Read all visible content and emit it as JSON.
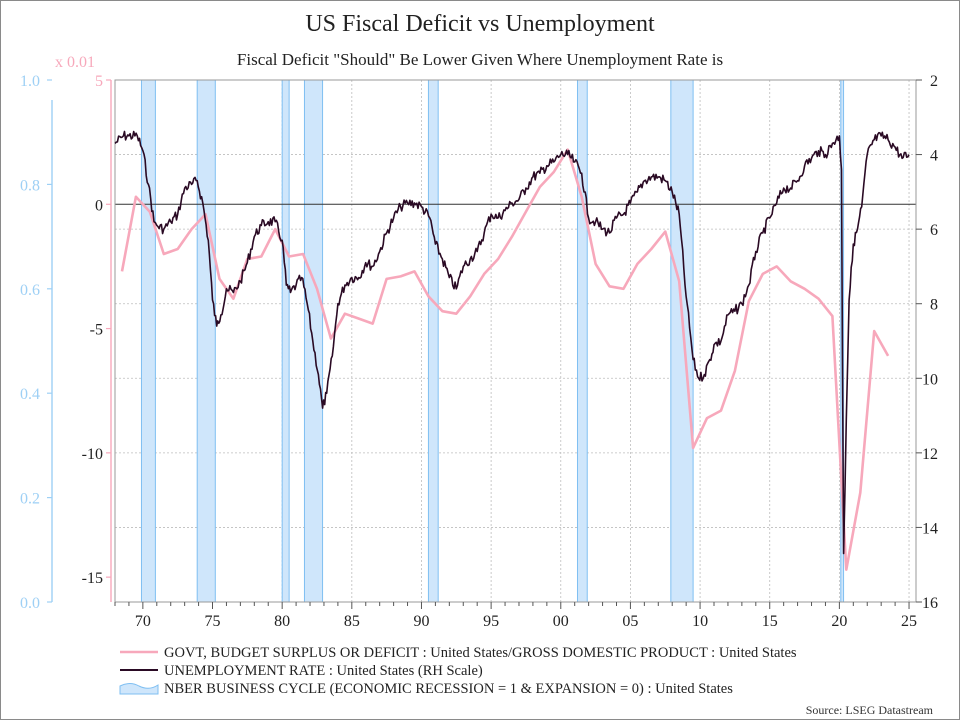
{
  "chart_data": {
    "type": "line",
    "title": "US Fiscal Deficit vs Unemployment",
    "subtitle": "Fiscal Deficit \"Should\" Be Lower Given Where Unemployment Rate is",
    "source": "Source: LSEG Datastream",
    "scale_note": "x 0.01",
    "colors": {
      "deficit": "#f7a8bb",
      "unemployment": "#2a0a24",
      "recession_fill": "#cfe6fb",
      "recession_edge": "#7fbff2",
      "left_axis": "#9ed0f5",
      "pink_axis": "#f7a8bb"
    },
    "x_range": [
      1968,
      2025.5
    ],
    "x_ticks": [
      {
        "v": 1970,
        "label": "70"
      },
      {
        "v": 1975,
        "label": "75"
      },
      {
        "v": 1980,
        "label": "80"
      },
      {
        "v": 1985,
        "label": "85"
      },
      {
        "v": 1990,
        "label": "90"
      },
      {
        "v": 1995,
        "label": "95"
      },
      {
        "v": 2000,
        "label": "00"
      },
      {
        "v": 2005,
        "label": "05"
      },
      {
        "v": 2010,
        "label": "10"
      },
      {
        "v": 2015,
        "label": "15"
      },
      {
        "v": 2020,
        "label": "20"
      },
      {
        "v": 2025,
        "label": "25"
      }
    ],
    "left_axis": {
      "range": [
        0.0,
        1.0
      ],
      "ticks": [
        "0.0",
        "0.2",
        "0.4",
        "0.6",
        "0.8",
        "1.0"
      ]
    },
    "deficit_axis": {
      "range": [
        -16,
        5
      ],
      "ticks": [
        {
          "v": 5,
          "label": "5"
        },
        {
          "v": 0,
          "label": "0"
        },
        {
          "v": -5,
          "label": "-5"
        },
        {
          "v": -10,
          "label": "-10"
        },
        {
          "v": -15,
          "label": "-15"
        }
      ]
    },
    "right_axis": {
      "range": [
        2,
        16
      ],
      "inverted": true,
      "ticks": [
        "2",
        "4",
        "6",
        "8",
        "10",
        "12",
        "14",
        "16"
      ]
    },
    "legend": [
      "GOVT, BUDGET SURPLUS OR DEFICIT : United States/GROSS DOMESTIC PRODUCT : United States",
      "UNEMPLOYMENT RATE : United States (RH Scale)",
      "NBER BUSINESS CYCLE (ECONOMIC RECESSION = 1 & EXPANSION = 0) : United States"
    ],
    "recessions": [
      [
        1969.9,
        1970.9
      ],
      [
        1973.9,
        1975.2
      ],
      [
        1980.0,
        1980.5
      ],
      [
        1981.6,
        1982.9
      ],
      [
        1990.5,
        1991.2
      ],
      [
        2001.2,
        2001.9
      ],
      [
        2007.9,
        2009.5
      ],
      [
        2020.1,
        2020.3
      ]
    ],
    "deficit": {
      "x": [
        1968.5,
        1969.5,
        1970.5,
        1971.5,
        1972.5,
        1973.5,
        1974.5,
        1975.5,
        1976.5,
        1977.5,
        1978.5,
        1979.5,
        1980.5,
        1981.5,
        1982.5,
        1983.5,
        1984.5,
        1985.5,
        1986.5,
        1987.5,
        1988.5,
        1989.5,
        1990.5,
        1991.5,
        1992.5,
        1993.5,
        1994.5,
        1995.5,
        1996.5,
        1997.5,
        1998.5,
        1999.5,
        2000.5,
        2001.5,
        2002.5,
        2003.5,
        2004.5,
        2005.5,
        2006.5,
        2007.5,
        2008.5,
        2009.5,
        2010.5,
        2011.5,
        2012.5,
        2013.5,
        2014.5,
        2015.5,
        2016.5,
        2017.5,
        2018.5,
        2019.5,
        2020.5,
        2021.5,
        2022.5,
        2023.5
      ],
      "y": [
        -2.7,
        0.3,
        -0.3,
        -2.0,
        -1.8,
        -1.0,
        -0.4,
        -3.0,
        -3.8,
        -2.2,
        -2.1,
        -1.0,
        -2.1,
        -2.0,
        -3.4,
        -5.4,
        -4.4,
        -4.6,
        -4.8,
        -3.0,
        -2.9,
        -2.7,
        -3.7,
        -4.3,
        -4.4,
        -3.7,
        -2.8,
        -2.2,
        -1.3,
        -0.3,
        0.7,
        1.3,
        2.2,
        0.3,
        -2.4,
        -3.3,
        -3.4,
        -2.4,
        -1.8,
        -1.1,
        -3.1,
        -9.8,
        -8.6,
        -8.3,
        -6.7,
        -3.9,
        -2.8,
        -2.5,
        -3.1,
        -3.4,
        -3.8,
        -4.5,
        -14.7,
        -11.6,
        -5.1,
        -6.1
      ]
    },
    "unemployment": {
      "x": [
        1968.0,
        1968.6,
        1969.0,
        1969.6,
        1970.0,
        1970.4,
        1970.8,
        1971.0,
        1971.5,
        1972.0,
        1972.5,
        1973.0,
        1973.5,
        1973.9,
        1974.3,
        1974.7,
        1975.0,
        1975.3,
        1975.6,
        1976.0,
        1976.5,
        1977.0,
        1977.5,
        1978.0,
        1978.5,
        1979.0,
        1979.5,
        1980.0,
        1980.3,
        1980.6,
        1981.0,
        1981.4,
        1981.8,
        1982.2,
        1982.6,
        1982.9,
        1983.2,
        1983.6,
        1984.0,
        1984.5,
        1985.0,
        1985.5,
        1986.0,
        1986.5,
        1987.0,
        1987.5,
        1988.0,
        1988.5,
        1989.0,
        1989.5,
        1990.0,
        1990.6,
        1991.0,
        1991.5,
        1992.0,
        1992.5,
        1993.0,
        1993.5,
        1994.0,
        1994.5,
        1995.0,
        1995.5,
        1996.0,
        1996.5,
        1997.0,
        1997.5,
        1998.0,
        1998.5,
        1999.0,
        1999.5,
        2000.0,
        2000.5,
        2001.0,
        2001.5,
        2002.0,
        2002.5,
        2003.0,
        2003.5,
        2004.0,
        2004.5,
        2005.0,
        2005.5,
        2006.0,
        2006.5,
        2007.0,
        2007.5,
        2008.0,
        2008.5,
        2009.0,
        2009.5,
        2009.9,
        2010.3,
        2010.7,
        2011.0,
        2011.5,
        2012.0,
        2012.5,
        2013.0,
        2013.5,
        2014.0,
        2014.5,
        2015.0,
        2015.5,
        2016.0,
        2016.5,
        2017.0,
        2017.5,
        2018.0,
        2018.5,
        2019.0,
        2019.5,
        2020.0,
        2020.15,
        2020.3,
        2020.5,
        2020.7,
        2021.0,
        2021.3,
        2021.6,
        2022.0,
        2022.5,
        2023.0,
        2023.5,
        2024.0,
        2024.5,
        2025.0
      ],
      "y": [
        3.7,
        3.5,
        3.5,
        3.5,
        3.9,
        4.8,
        5.8,
        5.9,
        6.0,
        5.8,
        5.6,
        4.9,
        4.8,
        4.7,
        5.3,
        6.3,
        7.9,
        8.6,
        8.3,
        7.6,
        7.7,
        7.4,
        6.9,
        6.2,
        5.9,
        5.8,
        5.8,
        6.3,
        7.5,
        7.7,
        7.5,
        7.3,
        8.0,
        9.0,
        9.9,
        10.8,
        10.4,
        9.4,
        8.0,
        7.5,
        7.3,
        7.3,
        6.9,
        7.0,
        6.6,
        6.1,
        5.7,
        5.4,
        5.3,
        5.3,
        5.4,
        5.7,
        6.4,
        6.8,
        7.3,
        7.6,
        7.0,
        6.8,
        6.6,
        6.1,
        5.6,
        5.7,
        5.5,
        5.3,
        5.2,
        4.9,
        4.6,
        4.5,
        4.3,
        4.2,
        4.0,
        4.0,
        4.2,
        4.5,
        5.7,
        5.8,
        6.0,
        6.1,
        5.7,
        5.6,
        5.3,
        5.0,
        4.7,
        4.6,
        4.6,
        4.7,
        5.0,
        5.6,
        7.8,
        9.5,
        10.0,
        9.9,
        9.5,
        9.1,
        9.0,
        8.3,
        8.2,
        8.0,
        7.5,
        6.6,
        6.1,
        5.7,
        5.3,
        4.9,
        4.9,
        4.7,
        4.3,
        4.1,
        3.9,
        4.0,
        3.7,
        3.5,
        4.4,
        14.7,
        11.1,
        7.9,
        6.4,
        6.0,
        5.4,
        4.0,
        3.6,
        3.5,
        3.6,
        3.8,
        4.1,
        4.0
      ]
    }
  }
}
